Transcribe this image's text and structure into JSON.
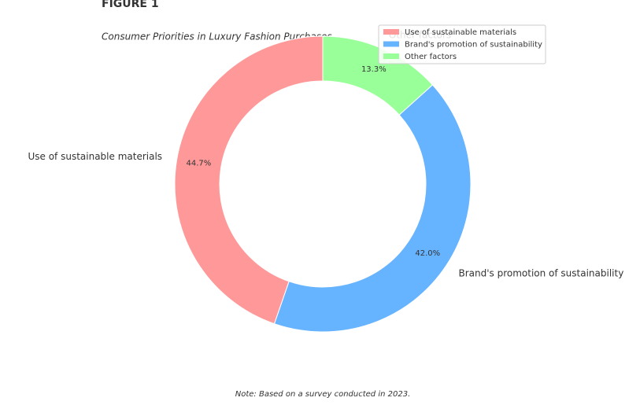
{
  "header": {
    "label": "FIGURE 1",
    "note": "Note: Based on a survey conducted in 2023."
  },
  "chart_data": {
    "type": "pie",
    "donut": true,
    "title": "Consumer Priorities in Luxury Fashion Purchases",
    "categories": [
      "Use of sustainable materials",
      "Brand's promotion of sustainability",
      "Other factors"
    ],
    "values": [
      44.7,
      42.0,
      13.3
    ],
    "value_labels": [
      "44.7%",
      "42.0%",
      "13.3%"
    ],
    "colors": [
      "#ff9999",
      "#66b3ff",
      "#99ff99"
    ],
    "legend": "upper right"
  }
}
